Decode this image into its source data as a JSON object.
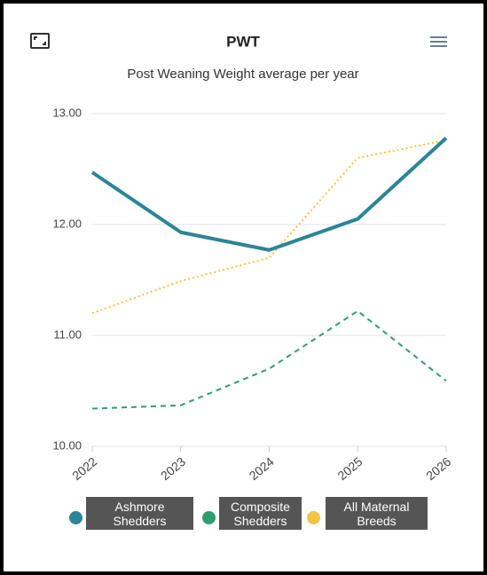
{
  "chart_data": {
    "type": "line",
    "header": "PWT",
    "title": "Post Weaning Weight average per year",
    "categories": [
      "2022",
      "2023",
      "2024",
      "2025",
      "2026"
    ],
    "series": [
      {
        "name": "Ashmore Shedders",
        "color": "#2a8597",
        "line_style": "solid",
        "values": [
          12.47,
          11.93,
          11.77,
          12.05,
          12.78
        ]
      },
      {
        "name": "Composite Shedders",
        "color": "#2e9e6e",
        "line_style": "dashed",
        "values": [
          10.34,
          10.37,
          10.7,
          11.22,
          10.59
        ]
      },
      {
        "name": "All Maternal Breeds",
        "color": "#f5c342",
        "line_style": "dotted",
        "values": [
          11.2,
          11.49,
          11.7,
          12.6,
          12.76
        ]
      }
    ],
    "ylim": [
      10,
      13
    ],
    "yticks": [
      {
        "value": 10,
        "label": "10.00"
      },
      {
        "value": 11,
        "label": "11.00"
      },
      {
        "value": 12,
        "label": "12.00"
      },
      {
        "value": 13,
        "label": "13.00"
      }
    ],
    "grid": true
  }
}
